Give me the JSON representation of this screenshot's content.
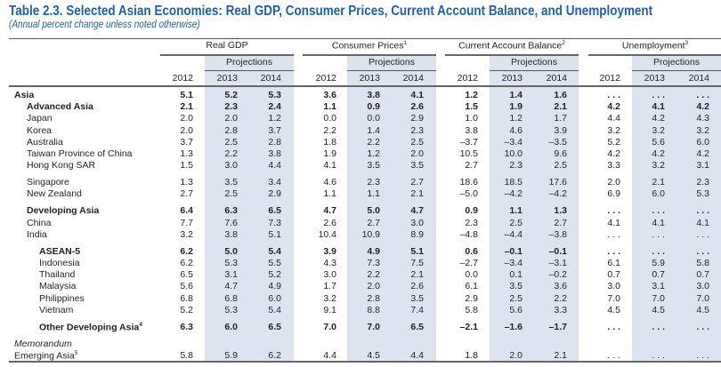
{
  "title": "Table 2.3. Selected Asian Economies: Real GDP, Consumer Prices, Current Account Balance, and Unemployment",
  "subtitle": "(Annual percent change unless noted otherwise)",
  "header": {
    "groups": [
      {
        "label": "Real GDP",
        "sup": ""
      },
      {
        "label": "Consumer Prices",
        "sup": "1"
      },
      {
        "label": "Current Account Balance",
        "sup": "2"
      },
      {
        "label": "Unemployment",
        "sup": "3"
      }
    ],
    "projections_label": "Projections",
    "years": [
      "2012",
      "2013",
      "2014"
    ]
  },
  "shade_color": "#dde4f1",
  "title_color": "#1f5fa8",
  "blocks": [
    [
      {
        "label": "Asia",
        "level": 0,
        "bold": true,
        "values": [
          "5.1",
          "5.2",
          "5.3",
          "3.6",
          "3.8",
          "4.1",
          "1.2",
          "1.4",
          "1.6",
          "...",
          "...",
          "..."
        ]
      },
      {
        "label": "Advanced Asia",
        "level": 1,
        "bold": true,
        "values": [
          "2.1",
          "2.3",
          "2.4",
          "1.1",
          "0.9",
          "2.6",
          "1.5",
          "1.9",
          "2.1",
          "4.2",
          "4.1",
          "4.2"
        ]
      },
      {
        "label": "Japan",
        "level": 1,
        "values": [
          "2.0",
          "2.0",
          "1.2",
          "0.0",
          "0.0",
          "2.9",
          "1.0",
          "1.2",
          "1.7",
          "4.4",
          "4.2",
          "4.3"
        ]
      },
      {
        "label": "Korea",
        "level": 1,
        "values": [
          "2.0",
          "2.8",
          "3.7",
          "2.2",
          "1.4",
          "2.3",
          "3.8",
          "4.6",
          "3.9",
          "3.2",
          "3.2",
          "3.2"
        ]
      },
      {
        "label": "Australia",
        "level": 1,
        "values": [
          "3.7",
          "2.5",
          "2.8",
          "1.8",
          "2.2",
          "2.5",
          "–3.7",
          "–3.4",
          "–3.5",
          "5.2",
          "5.6",
          "6.0"
        ]
      },
      {
        "label": "Taiwan Province of China",
        "level": 1,
        "values": [
          "1.3",
          "2.2",
          "3.8",
          "1.9",
          "1.2",
          "2.0",
          "10.5",
          "10.0",
          "9.6",
          "4.2",
          "4.2",
          "4.2"
        ]
      },
      {
        "label": "Hong Kong SAR",
        "level": 1,
        "values": [
          "1.5",
          "3.0",
          "4.4",
          "4.1",
          "3.5",
          "3.5",
          "2.7",
          "2.3",
          "2.5",
          "3.3",
          "3.2",
          "3.1"
        ]
      }
    ],
    [
      {
        "label": "Singapore",
        "level": 1,
        "values": [
          "1.3",
          "3.5",
          "3.4",
          "4.6",
          "2.3",
          "2.7",
          "18.6",
          "18.5",
          "17.6",
          "2.0",
          "2.1",
          "2.3"
        ]
      },
      {
        "label": "New Zealand",
        "level": 1,
        "values": [
          "2.7",
          "2.5",
          "2.9",
          "1.1",
          "1.1",
          "2.1",
          "–5.0",
          "–4.2",
          "–4.2",
          "6.9",
          "6.0",
          "5.3"
        ]
      }
    ],
    [
      {
        "label": "Developing Asia",
        "level": 1,
        "bold": true,
        "values": [
          "6.4",
          "6.3",
          "6.5",
          "4.7",
          "5.0",
          "4.7",
          "0.9",
          "1.1",
          "1.3",
          "...",
          "...",
          "..."
        ]
      },
      {
        "label": "China",
        "level": 1,
        "values": [
          "7.7",
          "7.6",
          "7.3",
          "2.6",
          "2.7",
          "3.0",
          "2.3",
          "2.5",
          "2.7",
          "4.1",
          "4.1",
          "4.1"
        ]
      },
      {
        "label": "India",
        "level": 1,
        "values": [
          "3.2",
          "3.8",
          "5.1",
          "10.4",
          "10.9",
          "8.9",
          "–4.8",
          "–4.4",
          "–3.8",
          "...",
          "...",
          "..."
        ]
      }
    ],
    [
      {
        "label": "ASEAN-5",
        "level": 2,
        "bold": true,
        "values": [
          "6.2",
          "5.0",
          "5.4",
          "3.9",
          "4.9",
          "5.1",
          "0.6",
          "–0.1",
          "–0.1",
          "...",
          "...",
          "..."
        ]
      },
      {
        "label": "Indonesia",
        "level": 2,
        "values": [
          "6.2",
          "5.3",
          "5.5",
          "4.3",
          "7.3",
          "7.5",
          "–2.7",
          "–3.4",
          "–3.1",
          "6.1",
          "5.9",
          "5.8"
        ]
      },
      {
        "label": "Thailand",
        "level": 2,
        "values": [
          "6.5",
          "3.1",
          "5.2",
          "3.0",
          "2.2",
          "2.1",
          "0.0",
          "0.1",
          "–0.2",
          "0.7",
          "0.7",
          "0.7"
        ]
      },
      {
        "label": "Malaysia",
        "level": 2,
        "values": [
          "5.6",
          "4.7",
          "4.9",
          "1.7",
          "2.0",
          "2.6",
          "6.1",
          "3.5",
          "3.6",
          "3.0",
          "3.1",
          "3.0"
        ]
      },
      {
        "label": "Philippines",
        "level": 2,
        "values": [
          "6.8",
          "6.8",
          "6.0",
          "3.2",
          "2.8",
          "3.5",
          "2.9",
          "2.5",
          "2.2",
          "7.0",
          "7.0",
          "7.0"
        ]
      },
      {
        "label": "Vietnam",
        "level": 2,
        "values": [
          "5.2",
          "5.3",
          "5.4",
          "9.1",
          "8.8",
          "7.4",
          "5.8",
          "5.6",
          "3.3",
          "4.5",
          "4.5",
          "4.5"
        ]
      }
    ],
    [
      {
        "label": "Other Developing Asia",
        "sup": "4",
        "level": 2,
        "bold": true,
        "values": [
          "6.3",
          "6.0",
          "6.5",
          "7.0",
          "7.0",
          "6.5",
          "–2.1",
          "–1.6",
          "–1.7",
          "...",
          "...",
          "..."
        ]
      }
    ],
    [
      {
        "label": "Memorandum",
        "level": 0,
        "italic": true,
        "values": []
      },
      {
        "label": "Emerging Asia",
        "sup": "5",
        "level": 0,
        "values": [
          "5.8",
          "5.9",
          "6.2",
          "4.4",
          "4.5",
          "4.4",
          "1.8",
          "2.0",
          "2.1",
          "...",
          "...",
          "..."
        ]
      }
    ]
  ]
}
